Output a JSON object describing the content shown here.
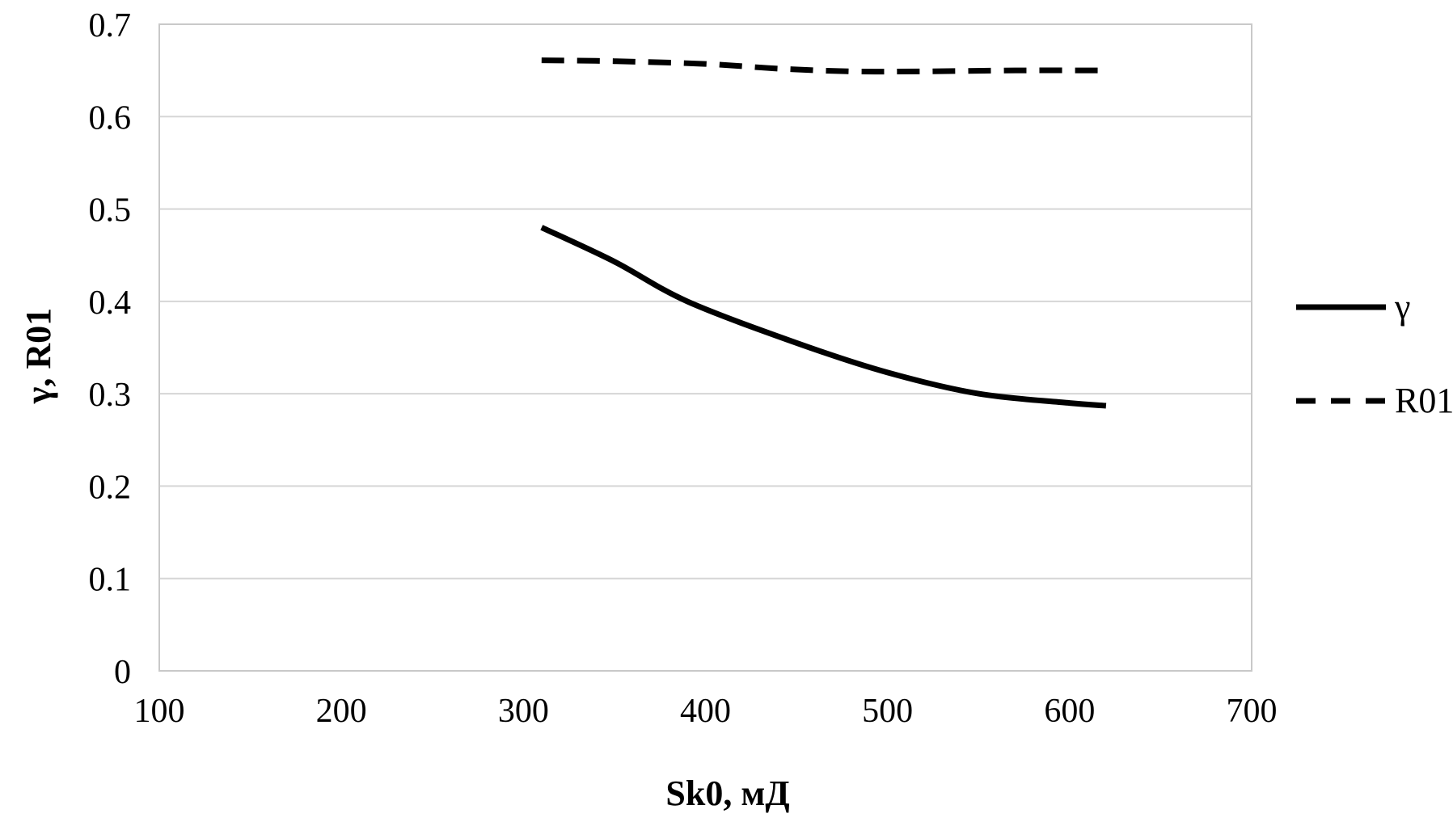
{
  "chart_data": {
    "type": "line",
    "title": "",
    "xlabel": "Sk0, мД",
    "ylabel": "γ, R01",
    "xlim": [
      100,
      700
    ],
    "ylim": [
      0,
      0.7
    ],
    "x_ticks": [
      100,
      200,
      300,
      400,
      500,
      600,
      700
    ],
    "y_ticks": [
      0,
      0.1,
      0.2,
      0.3,
      0.4,
      0.5,
      0.6,
      0.7
    ],
    "y_tick_labels": [
      "0",
      "0.1",
      "0.2",
      "0.3",
      "0.4",
      "0.5",
      "0.6",
      "0.7"
    ],
    "grid": "horizontal-only",
    "legend_position": "right-outside",
    "series": [
      {
        "name": "γ",
        "line_style": "solid",
        "color": "#000000",
        "x": [
          310,
          350,
          390,
          450,
          500,
          550,
          600,
          620
        ],
        "y": [
          0.48,
          0.443,
          0.4,
          0.355,
          0.323,
          0.3,
          0.29,
          0.287
        ]
      },
      {
        "name": "R01",
        "line_style": "dashed",
        "color": "#000000",
        "x": [
          310,
          350,
          400,
          440,
          480,
          520,
          570,
          620
        ],
        "y": [
          0.661,
          0.66,
          0.657,
          0.652,
          0.649,
          0.649,
          0.65,
          0.65
        ]
      }
    ]
  },
  "colors": {
    "series": "#000000",
    "gridline": "#d6d6d6",
    "plot_border": "#c9c9c9",
    "text": "#000000",
    "background": "#ffffff"
  }
}
